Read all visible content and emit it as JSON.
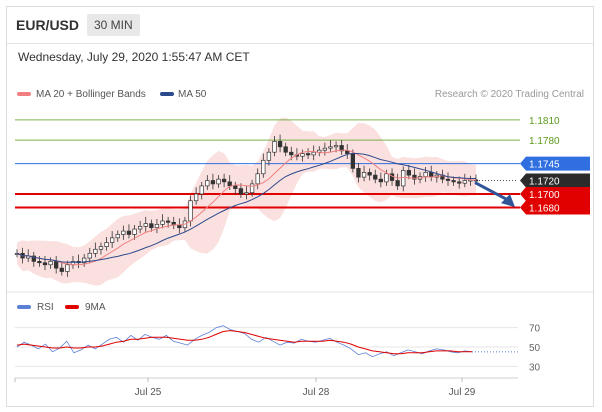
{
  "header": {
    "symbol": "EUR/USD",
    "interval": "30 MIN"
  },
  "timestamp": "Wednesday, July 29, 2020 1:55:47 AM CET",
  "legend": [
    {
      "label": "MA 20 + Bollinger Bands",
      "color": "#f08080"
    },
    {
      "label": "MA 50",
      "color": "#2b4a8c"
    }
  ],
  "credit": "Research © 2020 Trading Central",
  "rsi_legend": [
    {
      "label": "RSI",
      "color": "#5b7fd6"
    },
    {
      "label": "9MA",
      "color": "#e00000"
    }
  ],
  "chart_data": [
    {
      "type": "line",
      "title": "EUR/USD 30 MIN",
      "description_series": "candlestick price with MA20, Bollinger Bands and MA50",
      "x_ticks": [
        "Jul 25",
        "Jul 28",
        "Jul 29"
      ],
      "ylim": [
        1.1565,
        1.1835
      ],
      "levels": [
        {
          "value": 1.181,
          "label": "1.1810",
          "color": "#7ab04a",
          "style": "resistance"
        },
        {
          "value": 1.178,
          "label": "1.1780",
          "color": "#7ab04a",
          "style": "resistance"
        },
        {
          "value": 1.1745,
          "label": "1.1745",
          "color": "#2f6fe0",
          "style": "pivot"
        },
        {
          "value": 1.172,
          "label": "1.1720",
          "color": "#333333",
          "style": "last price"
        },
        {
          "value": 1.17,
          "label": "1.1700",
          "color": "#e00000",
          "style": "support"
        },
        {
          "value": 1.168,
          "label": "1.1680",
          "color": "#e00000",
          "style": "support"
        }
      ],
      "price_path": [
        1.1612,
        1.1605,
        1.1608,
        1.16,
        1.1598,
        1.1595,
        1.16,
        1.159,
        1.1585,
        1.1595,
        1.16,
        1.1598,
        1.1605,
        1.1612,
        1.1618,
        1.1622,
        1.1628,
        1.1635,
        1.164,
        1.1645,
        1.164,
        1.1648,
        1.1652,
        1.1656,
        1.165,
        1.1655,
        1.166,
        1.1658,
        1.1654,
        1.165,
        1.166,
        1.169,
        1.17,
        1.1712,
        1.172,
        1.1715,
        1.1722,
        1.1718,
        1.1712,
        1.1708,
        1.17,
        1.1702,
        1.1715,
        1.173,
        1.175,
        1.1762,
        1.1778,
        1.177,
        1.1762,
        1.1758,
        1.1756,
        1.176,
        1.1758,
        1.1762,
        1.1765,
        1.1768,
        1.177,
        1.1772,
        1.1764,
        1.176,
        1.1738,
        1.1725,
        1.1732,
        1.1728,
        1.1722,
        1.1718,
        1.173,
        1.172,
        1.1712,
        1.1735,
        1.1728,
        1.1722,
        1.1726,
        1.1732,
        1.1725,
        1.1728,
        1.1722,
        1.172,
        1.1718,
        1.1716,
        1.172,
        1.1721,
        1.172
      ],
      "forecast": {
        "from": 1.172,
        "to": 1.1685,
        "direction": "down"
      }
    },
    {
      "type": "line",
      "title": "RSI",
      "ylim": [
        20,
        80
      ],
      "y_ticks": [
        70,
        50,
        30
      ],
      "series": [
        {
          "name": "RSI",
          "color": "#5b7fd6",
          "values": [
            50,
            55,
            52,
            48,
            53,
            45,
            49,
            56,
            44,
            47,
            52,
            48,
            53,
            58,
            60,
            55,
            62,
            57,
            63,
            60,
            58,
            62,
            56,
            54,
            52,
            58,
            62,
            65,
            70,
            72,
            68,
            66,
            64,
            58,
            55,
            60,
            56,
            52,
            55,
            54,
            58,
            56,
            55,
            57,
            59,
            55,
            52,
            48,
            42,
            44,
            40,
            43,
            45,
            41,
            44,
            47,
            45,
            43,
            46,
            48,
            47,
            45,
            44,
            46,
            45
          ]
        },
        {
          "name": "9MA",
          "color": "#e00000",
          "values": [
            52,
            53,
            52,
            51,
            50,
            49,
            49,
            50,
            49,
            49,
            50,
            50,
            51,
            53,
            55,
            56,
            58,
            58,
            59,
            60,
            60,
            60,
            59,
            58,
            57,
            57,
            58,
            60,
            63,
            66,
            67,
            66,
            65,
            63,
            61,
            59,
            58,
            57,
            56,
            55,
            56,
            56,
            56,
            56,
            57,
            56,
            55,
            53,
            50,
            48,
            46,
            45,
            44,
            43,
            43,
            44,
            44,
            44,
            45,
            46,
            46,
            46,
            45,
            45,
            45
          ]
        }
      ]
    }
  ]
}
